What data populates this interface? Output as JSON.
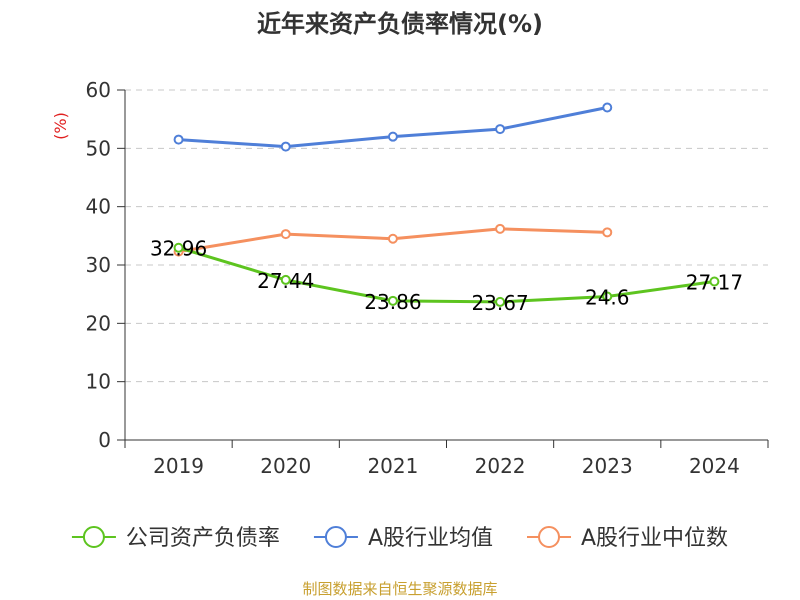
{
  "chart_data": {
    "type": "line",
    "title": "近年来资产负债率情况(%)",
    "ylabel": "(%)",
    "categories": [
      "2019",
      "2020",
      "2021",
      "2022",
      "2023",
      "2024"
    ],
    "ylim": [
      0,
      60
    ],
    "yticks": [
      0,
      10,
      20,
      30,
      40,
      50,
      60
    ],
    "grid": true,
    "legend_position": "bottom",
    "series": [
      {
        "name": "公司资产负债率",
        "color": "#5dc41f",
        "values": [
          32.96,
          27.44,
          23.86,
          23.67,
          24.6,
          27.17
        ],
        "labels": [
          "32.96",
          "27.44",
          "23.86",
          "23.67",
          "24.6",
          "27.17"
        ]
      },
      {
        "name": "A股行业均值",
        "color": "#4f7fd8",
        "values": [
          51.5,
          50.3,
          52.0,
          53.3,
          57.0,
          null
        ]
      },
      {
        "name": "A股行业中位数",
        "color": "#f5905f",
        "values": [
          32.3,
          35.3,
          34.5,
          36.2,
          35.6,
          null
        ]
      }
    ]
  },
  "source": "制图数据来自恒生聚源数据库"
}
